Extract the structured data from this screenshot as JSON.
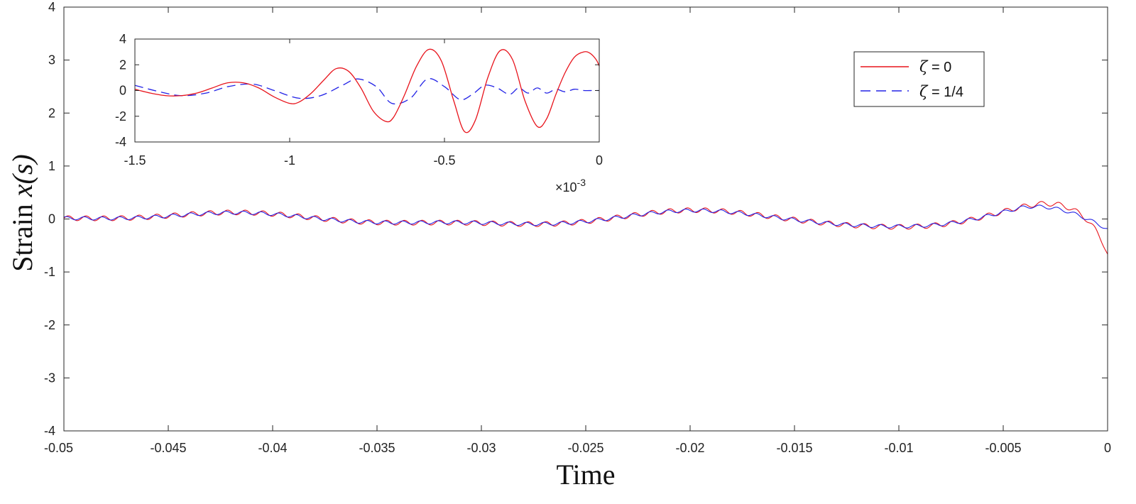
{
  "chart_data": {
    "type": "line",
    "xlabel": "Time",
    "ylabel_text": "Strain",
    "ylabel_math": "x(s)",
    "xlim": [
      -0.05,
      0
    ],
    "ylim": [
      -4,
      4
    ],
    "xticks": [
      -0.05,
      -0.045,
      -0.04,
      -0.035,
      -0.03,
      -0.025,
      -0.02,
      -0.015,
      -0.01,
      -0.005,
      0
    ],
    "xtick_labels": [
      "-0.05",
      "-0.045",
      "-0.04",
      "-0.035",
      "-0.03",
      "-0.025",
      "-0.02",
      "-0.015",
      "-0.01",
      "-0.005",
      "0"
    ],
    "yticks": [
      -4,
      -3,
      -2,
      -1,
      0,
      1,
      2,
      3,
      4
    ],
    "ytick_labels": [
      "-4",
      "-3",
      "-2",
      "-1",
      "0",
      "1",
      "2",
      "3",
      "4"
    ],
    "legend": {
      "placement": "top-right",
      "entries": [
        {
          "symbol": "ζ",
          "text": " = 0",
          "color": "#e8141c",
          "style": "solid"
        },
        {
          "symbol": "ζ",
          "text": " = 1/4",
          "color": "#2323e6",
          "style": "dashed"
        }
      ]
    },
    "series": [
      {
        "name": "ζ = 0",
        "color": "#e8141c",
        "style": "solid",
        "description": "inspiral waveform, amplitude ~0.1 far from merger, growing to ~3.3 near t = 0"
      },
      {
        "name": "ζ = 1/4",
        "color": "#2323e6",
        "style": "dashed",
        "description": "same envelope, damped, peak amplitude ~1 near t = 0"
      }
    ],
    "inset": {
      "xlim": [
        -1.5,
        0
      ],
      "ylim": [
        -4,
        4
      ],
      "xticks": [
        -1.5,
        -1,
        -0.5,
        0
      ],
      "xtick_labels": [
        "-1.5",
        "-1",
        "-0.5",
        "0"
      ],
      "yticks": [
        -4,
        -2,
        0,
        2,
        4
      ],
      "ytick_labels": [
        "-4",
        "-2",
        "0",
        "2",
        "4"
      ],
      "x_multiplier_base": "×10",
      "x_multiplier_exp": "-3",
      "series_red": {
        "x": [
          -1.5,
          -1.45,
          -1.4,
          -1.35,
          -1.3,
          -1.25,
          -1.2,
          -1.15,
          -1.1,
          -1.05,
          -1.0,
          -0.97,
          -0.93,
          -0.89,
          -0.85,
          -0.81,
          -0.77,
          -0.73,
          -0.69,
          -0.665,
          -0.63,
          -0.59,
          -0.55,
          -0.51,
          -0.47,
          -0.435,
          -0.4,
          -0.36,
          -0.32,
          -0.28,
          -0.24,
          -0.2,
          -0.17,
          -0.14,
          -0.11,
          -0.08,
          -0.05,
          -0.03,
          -0.01,
          0
        ],
        "y": [
          0.1,
          -0.2,
          -0.4,
          -0.4,
          -0.2,
          0.2,
          0.6,
          0.6,
          0.2,
          -0.5,
          -1.0,
          -0.9,
          -0.2,
          0.8,
          1.7,
          1.5,
          0.2,
          -1.6,
          -2.4,
          -2.1,
          -0.4,
          1.9,
          3.2,
          2.3,
          -0.8,
          -3.2,
          -2.3,
          1.0,
          3.1,
          2.4,
          -0.8,
          -2.8,
          -2.2,
          -0.3,
          1.4,
          2.6,
          3.0,
          2.9,
          2.4,
          1.9
        ]
      },
      "series_blue": {
        "x": [
          -1.5,
          -1.42,
          -1.35,
          -1.27,
          -1.2,
          -1.12,
          -1.05,
          -0.97,
          -0.9,
          -0.83,
          -0.78,
          -0.72,
          -0.67,
          -0.61,
          -0.555,
          -0.5,
          -0.45,
          -0.41,
          -0.37,
          -0.33,
          -0.29,
          -0.26,
          -0.23,
          -0.2,
          -0.17,
          -0.14,
          -0.11,
          -0.08,
          -0.05,
          -0.02,
          0
        ],
        "y": [
          0.4,
          -0.1,
          -0.4,
          -0.2,
          0.3,
          0.5,
          0.0,
          -0.6,
          -0.4,
          0.4,
          0.9,
          0.3,
          -1.0,
          -0.6,
          0.9,
          0.3,
          -0.7,
          -0.3,
          0.4,
          0.2,
          -0.3,
          0.2,
          -0.2,
          0.2,
          -0.2,
          0.1,
          -0.1,
          0.1,
          0.0,
          0.0,
          0.0
        ]
      }
    }
  }
}
